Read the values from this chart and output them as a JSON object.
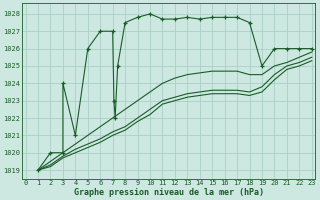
{
  "title": "Graphe pression niveau de la mer (hPa)",
  "bg_color": "#cce8e0",
  "grid_color": "#aacfc8",
  "line_color": "#1a5c28",
  "series": [
    {
      "x": [
        1,
        2,
        3,
        3,
        4,
        5,
        6,
        7,
        7.1,
        7.2,
        7.4,
        8,
        9,
        10,
        11,
        12,
        13,
        14,
        15,
        16,
        17,
        18,
        19,
        20,
        21,
        22,
        23
      ],
      "y": [
        1019,
        1020,
        1020,
        1024,
        1021,
        1026,
        1027,
        1027,
        1023,
        1022,
        1025,
        1027.5,
        1027.8,
        1028,
        1027.7,
        1027.7,
        1027.8,
        1027.7,
        1027.8,
        1027.8,
        1027.8,
        1027.5,
        1025,
        1026,
        1026,
        1026,
        1026
      ]
    },
    {
      "x": [
        1,
        2,
        3,
        4,
        5,
        6,
        7,
        8,
        9,
        10,
        11,
        12,
        13,
        14,
        15,
        16,
        17,
        18,
        19,
        20,
        21,
        22,
        23
      ],
      "y": [
        1019,
        1019.5,
        1020,
        1020.5,
        1021,
        1021.5,
        1022,
        1022.5,
        1023,
        1023.5,
        1024,
        1024.3,
        1024.5,
        1024.6,
        1024.7,
        1024.7,
        1024.7,
        1024.5,
        1024.5,
        1025,
        1025.2,
        1025.5,
        1025.8
      ]
    },
    {
      "x": [
        1,
        2,
        3,
        4,
        5,
        6,
        7,
        8,
        9,
        10,
        11,
        12,
        13,
        14,
        15,
        16,
        17,
        18,
        19,
        20,
        21,
        22,
        23
      ],
      "y": [
        1019,
        1019.3,
        1019.8,
        1020.2,
        1020.5,
        1020.8,
        1021.2,
        1021.5,
        1022,
        1022.5,
        1023,
        1023.2,
        1023.4,
        1023.5,
        1023.6,
        1023.6,
        1023.6,
        1023.5,
        1023.8,
        1024.5,
        1025,
        1025.2,
        1025.5
      ]
    },
    {
      "x": [
        1,
        2,
        3,
        4,
        5,
        6,
        7,
        8,
        9,
        10,
        11,
        12,
        13,
        14,
        15,
        16,
        17,
        18,
        19,
        20,
        21,
        22,
        23
      ],
      "y": [
        1019,
        1019.2,
        1019.7,
        1020,
        1020.3,
        1020.6,
        1021,
        1021.3,
        1021.8,
        1022.2,
        1022.8,
        1023,
        1023.2,
        1023.3,
        1023.4,
        1023.4,
        1023.4,
        1023.3,
        1023.5,
        1024.2,
        1024.8,
        1025,
        1025.3
      ]
    }
  ],
  "ylim": [
    1018.5,
    1028.6
  ],
  "yticks": [
    1019,
    1020,
    1021,
    1022,
    1023,
    1024,
    1025,
    1026,
    1027,
    1028
  ],
  "xlim": [
    -0.3,
    23.3
  ],
  "xticks": [
    0,
    1,
    2,
    3,
    4,
    5,
    6,
    7,
    8,
    9,
    10,
    11,
    12,
    13,
    14,
    15,
    16,
    17,
    18,
    19,
    20,
    21,
    22,
    23
  ],
  "marker": "+"
}
